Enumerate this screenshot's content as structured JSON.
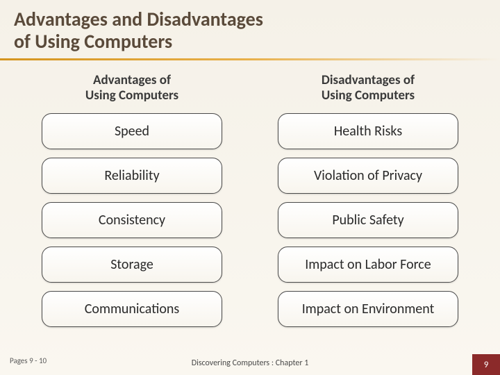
{
  "title_line1": "Advantages and Disadvantages",
  "title_line2": "of Using Computers",
  "columns": {
    "left": {
      "header_line1": "Advantages of",
      "header_line2": "Using Computers",
      "items": [
        "Speed",
        "Reliability",
        "Consistency",
        "Storage",
        "Communications"
      ]
    },
    "right": {
      "header_line1": "Disadvantages of",
      "header_line2": "Using Computers",
      "items": [
        "Health Risks",
        "Violation of Privacy",
        "Public Safety",
        "Impact on Labor Force",
        "Impact on Environment"
      ]
    }
  },
  "footer": {
    "pages_ref": "Pages 9 - 10",
    "center": "Discovering Computers : Chapter 1",
    "page_number": "9"
  },
  "style": {
    "title_color": "#5a4a3a",
    "title_fontsize": 28,
    "underline_gradient_start": "#d4941e",
    "underline_gradient_mid": "#e8b04a",
    "col_header_fontsize": 19,
    "col_header_color": "#3a3a3a",
    "pill_width": 260,
    "pill_height": 52,
    "pill_radius": 14,
    "pill_border_color": "#4a4a4a",
    "pill_bg_top": "#ffffff",
    "pill_bg_bottom": "#f8f5ee",
    "pill_fontsize": 20,
    "pill_text_color": "#2a2a2a",
    "page_badge_bg": "#8b2a2a",
    "page_badge_color": "#ffffff",
    "body_bg_top": "#f5f1e8",
    "body_bg_bottom": "#faf7f0"
  }
}
